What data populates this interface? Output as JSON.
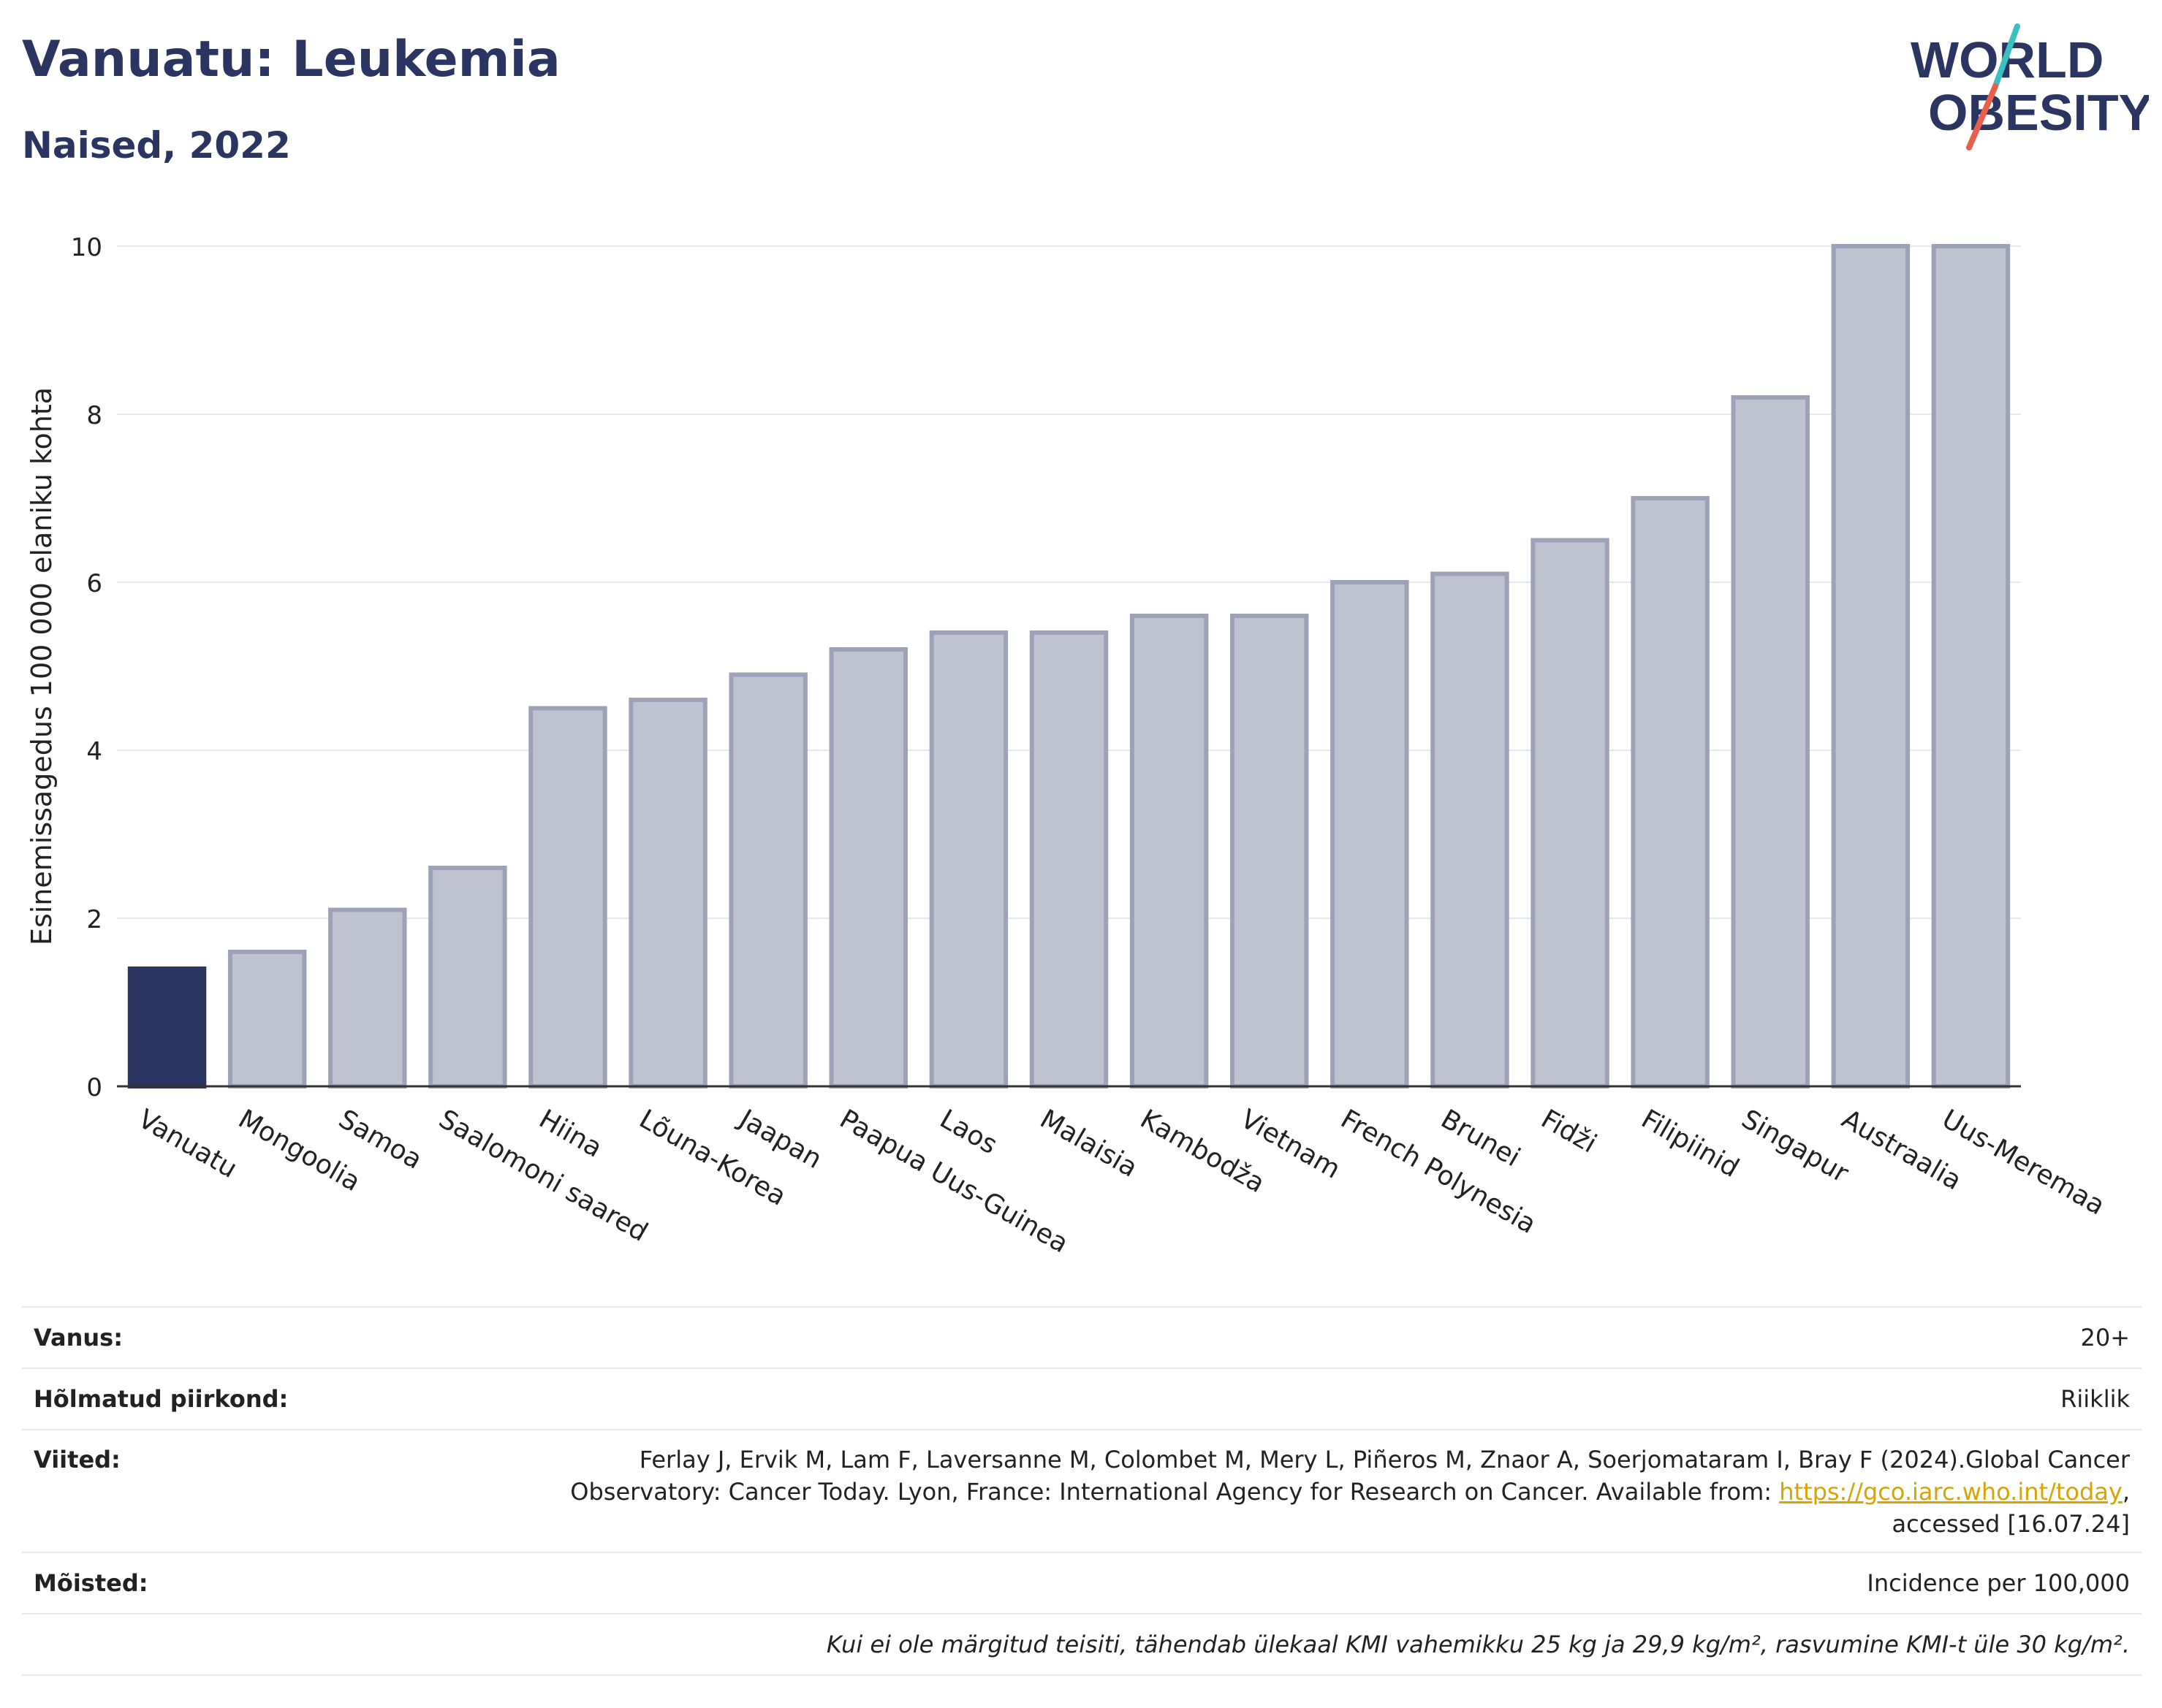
{
  "header": {
    "title": "Vanuatu: Leukemia",
    "subtitle": "Naised, 2022"
  },
  "logo": {
    "line1": "WORLD",
    "line2": "OBESITY",
    "colors": {
      "text": "#2b3561",
      "slash_teal": "#3bbfbf",
      "slash_red": "#e8604c"
    }
  },
  "colors": {
    "highlight_bar": "#2b3561",
    "other_bar_fill": "#bfc2d0",
    "other_bar_stroke": "#9da2b8",
    "axis": "#333333",
    "grid": "#e6e8ee"
  },
  "chart_data": {
    "type": "bar",
    "categories": [
      "Vanuatu",
      "Mongoolia",
      "Samoa",
      "Saalomoni saared",
      "Hiina",
      "Lõuna-Korea",
      "Jaapan",
      "Paapua Uus-Guinea",
      "Laos",
      "Malaisia",
      "Kambodža",
      "Vietnam",
      "French Polynesia",
      "Brunei",
      "Fidži",
      "Filipiinid",
      "Singapur",
      "Austraalia",
      "Uus-Meremaa"
    ],
    "values": [
      1.4,
      1.6,
      2.1,
      2.6,
      4.5,
      4.6,
      4.9,
      5.2,
      5.4,
      5.4,
      5.6,
      5.6,
      6.0,
      6.1,
      6.5,
      7.0,
      8.2,
      10.0,
      10.0
    ],
    "highlight": "Vanuatu",
    "ylabel": "Esinemissagedus 100 000 elaniku kohta",
    "xlabel": "",
    "ylim": [
      0,
      10
    ],
    "yticks": [
      0,
      2,
      4,
      6,
      8,
      10
    ],
    "grid": true
  },
  "info": {
    "rows": [
      {
        "label": "Vanus:",
        "value": "20+"
      },
      {
        "label": "Hõlmatud piirkond:",
        "value": "Riiklik"
      },
      {
        "label": "Viited:",
        "value_line1": "Ferlay J, Ervik M, Lam F, Laversanne M, Colombet M, Mery L, Piñeros M, Znaor A, Soerjomataram I, Bray F (2024).Global Cancer",
        "value_line2_pre": "Observatory: Cancer Today. Lyon, France: International Agency for Research on Cancer. Available from: ",
        "link": "https://gco.iarc.who.int/today",
        "value_line2_post": ",",
        "value_line3": "accessed [16.07.24]"
      },
      {
        "label": "Mõisted:",
        "value": "Incidence per 100,000"
      }
    ],
    "note": "Kui ei ole märgitud teisiti, tähendab ülekaal KMI vahemikku 25 kg ja 29,9 kg/m², rasvumine KMI-t üle 30 kg/m²."
  }
}
